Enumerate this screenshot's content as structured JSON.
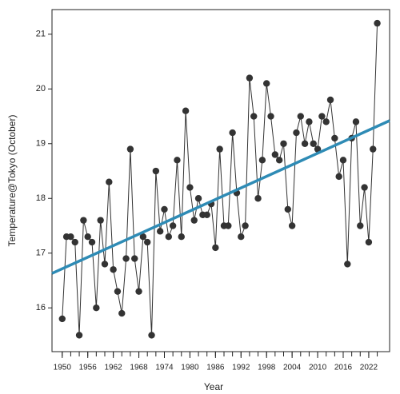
{
  "chart_data": {
    "type": "line",
    "x_label": "Year",
    "y_label": "Temperature@Tokyo (October)",
    "x": [
      1950,
      1951,
      1952,
      1953,
      1954,
      1955,
      1956,
      1957,
      1958,
      1959,
      1960,
      1961,
      1962,
      1963,
      1964,
      1965,
      1966,
      1967,
      1968,
      1969,
      1970,
      1971,
      1972,
      1973,
      1974,
      1975,
      1976,
      1977,
      1978,
      1979,
      1980,
      1981,
      1982,
      1983,
      1984,
      1985,
      1986,
      1987,
      1988,
      1989,
      1990,
      1991,
      1992,
      1993,
      1994,
      1995,
      1996,
      1997,
      1998,
      1999,
      2000,
      2001,
      2002,
      2003,
      2004,
      2005,
      2006,
      2007,
      2008,
      2009,
      2010,
      2011,
      2012,
      2013,
      2014,
      2015,
      2016,
      2017,
      2018,
      2019,
      2020,
      2021,
      2022,
      2023,
      2024
    ],
    "series": [
      {
        "color": "#333333",
        "values": [
          15.8,
          17.3,
          17.3,
          17.2,
          15.5,
          17.6,
          17.3,
          17.2,
          16.0,
          17.6,
          16.8,
          18.3,
          16.7,
          16.3,
          15.9,
          16.9,
          18.9,
          16.9,
          16.3,
          17.3,
          17.2,
          15.5,
          18.5,
          17.4,
          17.8,
          17.3,
          17.5,
          18.7,
          17.3,
          19.6,
          18.2,
          17.6,
          18.0,
          17.7,
          17.7,
          17.9,
          17.1,
          18.9,
          17.5,
          17.5,
          19.2,
          18.1,
          17.3,
          17.5,
          20.2,
          19.5,
          18.0,
          18.7,
          20.1,
          19.5,
          18.8,
          18.7,
          19.0,
          17.8,
          17.5,
          19.2,
          19.5,
          19.0,
          19.4,
          19.0,
          18.9,
          19.5,
          19.4,
          19.8,
          19.1,
          18.4,
          18.7,
          16.8,
          19.1,
          19.4,
          17.5,
          18.2,
          17.2,
          18.9,
          21.2
        ]
      }
    ],
    "trend_line": {
      "color": "#2e8bb5",
      "x": [
        1947.6,
        2026.9
      ],
      "values": [
        16.63,
        19.42
      ]
    },
    "xlim": [
      1947.6,
      2026.9
    ],
    "ylim": [
      15.2,
      21.45
    ],
    "xticks": [
      1950,
      1956,
      1962,
      1968,
      1974,
      1980,
      1986,
      1992,
      1998,
      2004,
      2010,
      2016,
      2022
    ],
    "xminor_ticks": [
      1950,
      1952,
      1954,
      1956,
      1958,
      1960,
      1962,
      1964,
      1966,
      1968,
      1970,
      1972,
      1974,
      1976,
      1978,
      1980,
      1982,
      1984,
      1986,
      1988,
      1990,
      1992,
      1994,
      1996,
      1998,
      2000,
      2002,
      2004,
      2006,
      2008,
      2010,
      2012,
      2014,
      2016,
      2018,
      2020,
      2022,
      2024
    ],
    "yticks": [
      16,
      17,
      18,
      19,
      20,
      21
    ]
  }
}
